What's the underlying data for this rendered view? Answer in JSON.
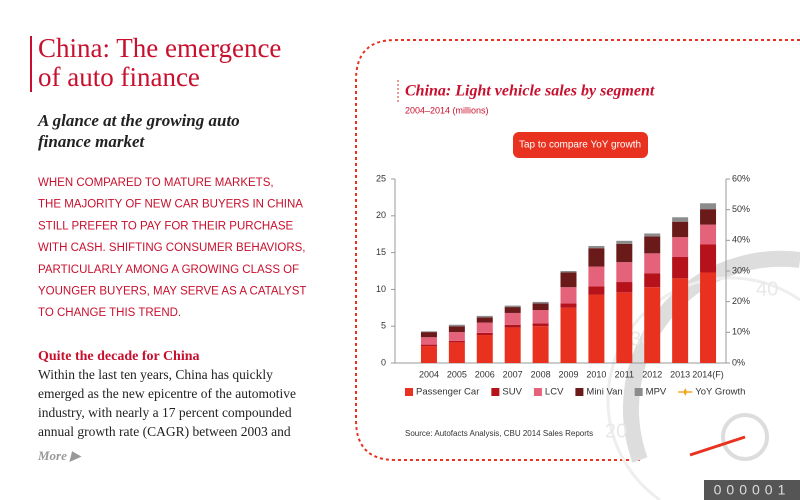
{
  "header": {
    "title_lines": [
      "China: The emergence",
      "of auto finance"
    ],
    "subtitle_lines": [
      "A glance at the growing auto",
      "finance market"
    ]
  },
  "intro": {
    "lines": [
      "WHEN COMPARED TO MATURE MARKETS,",
      "THE MAJORITY OF NEW CAR BUYERS IN CHINA",
      "STILL PREFER TO PAY FOR THEIR PURCHASE",
      "WITH CASH. SHIFTING CONSUMER BEHAVIORS,",
      "PARTICULARLY AMONG A GROWING CLASS OF",
      "YOUNGER BUYERS, MAY SERVE AS A CATALYST",
      "TO CHANGE THIS TREND."
    ]
  },
  "section": {
    "heading": "Quite the decade for China",
    "lines": [
      "Within the last ten years, China has quickly",
      "emerged as the new epicentre of the automotive",
      "industry, with nearly a 17 percent compounded",
      "annual growth rate (CAGR) between 2003 and"
    ]
  },
  "more": "More ▶",
  "button": "Tap to compare YoY growth",
  "gauge": {
    "labels": [
      "40",
      "30",
      "20"
    ]
  },
  "counter": "000001",
  "chart_data": {
    "type": "stacked_bar",
    "title": "China: Light vehicle sales by segment",
    "subtitle": "2004–2014 (millions)",
    "source": "Source: Autofacts Analysis, CBU 2014 Sales Reports",
    "categories": [
      "2004",
      "2005",
      "2006",
      "2007",
      "2008",
      "2009",
      "2010",
      "2011",
      "2012",
      "2013",
      "2014(F)"
    ],
    "series": [
      {
        "name": "Passenger Car",
        "color": "#e8321f",
        "values": [
          2.3,
          2.8,
          3.8,
          4.8,
          5.0,
          7.5,
          9.3,
          9.6,
          10.3,
          11.5,
          12.3
        ]
      },
      {
        "name": "SUV",
        "color": "#b5121b",
        "values": [
          0.2,
          0.2,
          0.3,
          0.4,
          0.4,
          0.6,
          1.1,
          1.4,
          1.9,
          2.9,
          3.8
        ]
      },
      {
        "name": "LCV",
        "color": "#e5637a",
        "values": [
          1.0,
          1.2,
          1.4,
          1.6,
          1.8,
          2.2,
          2.7,
          2.7,
          2.7,
          2.7,
          2.7
        ]
      },
      {
        "name": "Mini Van",
        "color": "#6b1a1a",
        "values": [
          0.7,
          0.8,
          0.7,
          0.8,
          0.9,
          2.0,
          2.5,
          2.5,
          2.3,
          2.1,
          2.1
        ]
      },
      {
        "name": "MPV",
        "color": "#8c8c8c",
        "values": [
          0.1,
          0.2,
          0.2,
          0.2,
          0.2,
          0.2,
          0.3,
          0.4,
          0.4,
          0.6,
          0.8
        ]
      }
    ],
    "legend_extra": [
      {
        "name": "YoY Growth",
        "color": "#f5a623"
      }
    ],
    "ylim": [
      0,
      25
    ],
    "yticks": [
      0,
      5,
      10,
      15,
      20,
      25
    ],
    "y2lim": [
      0,
      60
    ],
    "y2ticks": [
      {
        "value": 0,
        "label": "0%"
      },
      {
        "value": 10,
        "label": "10%"
      },
      {
        "value": 20,
        "label": "20%"
      },
      {
        "value": 30,
        "label": "30%"
      },
      {
        "value": 40,
        "label": "40%"
      },
      {
        "value": 50,
        "label": "50%"
      },
      {
        "value": 60,
        "label": "60%"
      }
    ],
    "grid": false
  }
}
